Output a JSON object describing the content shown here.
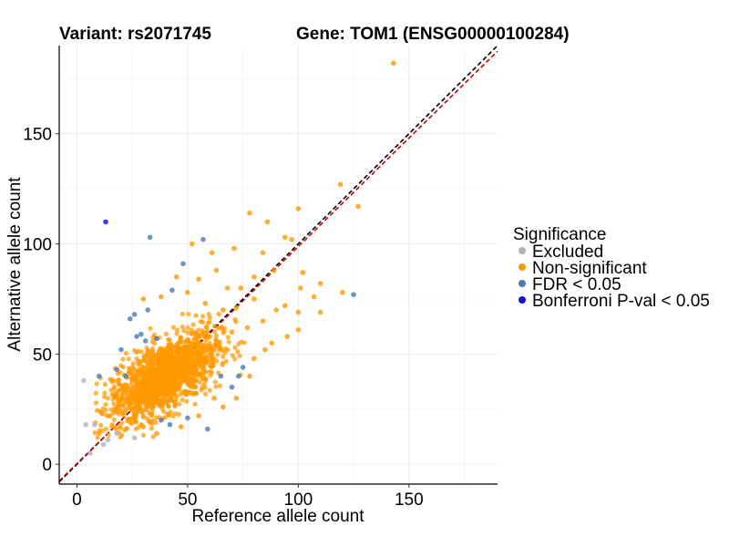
{
  "chart_data": {
    "type": "scatter",
    "title_left": "Variant: rs2071745",
    "title_right": "Gene: TOM1 (ENSG00000100284)",
    "xlabel": "Reference allele count",
    "ylabel": "Alternative allele count",
    "xlim": [
      -8,
      190
    ],
    "ylim": [
      -9,
      190
    ],
    "x_ticks": [
      0,
      50,
      100,
      150
    ],
    "y_ticks": [
      0,
      50,
      100,
      150
    ],
    "grid": true,
    "legend": {
      "title": "Significance",
      "placement": "right",
      "entries": [
        {
          "label": "Excluded",
          "color": "#b3b3b3"
        },
        {
          "label": "Non-significant",
          "color": "#ff9900"
        },
        {
          "label": "FDR < 0.05",
          "color": "#4a7bb7"
        },
        {
          "label": "Bonferroni P-val < 0.05",
          "color": "#1010e6"
        }
      ]
    },
    "reference_lines": [
      {
        "name": "identity",
        "slope": 1,
        "intercept": 0,
        "color": "#000000",
        "style": "dashed"
      },
      {
        "name": "fitted",
        "slope": 0.985,
        "intercept": 0.3,
        "color": "#cc0000",
        "style": "dashed"
      }
    ],
    "bulk_cloud": {
      "series": "Non-significant",
      "count": 1500,
      "center": [
        40,
        40
      ],
      "spread": [
        12,
        10
      ],
      "correlation": 0.62,
      "description_values_only": true
    },
    "series": [
      {
        "name": "Excluded",
        "color": "#b3b3b3",
        "points": [
          [
            3,
            38
          ],
          [
            4,
            18
          ],
          [
            8,
            18
          ],
          [
            12,
            9
          ],
          [
            14,
            11
          ],
          [
            6,
            5
          ],
          [
            18,
            14
          ],
          [
            26,
            12
          ]
        ]
      },
      {
        "name": "FDR < 0.05",
        "color": "#4a7bb7",
        "points": [
          [
            33,
            103
          ],
          [
            57,
            102
          ],
          [
            48,
            91
          ],
          [
            43,
            79
          ],
          [
            26,
            68
          ],
          [
            32,
            70
          ],
          [
            29,
            59
          ],
          [
            18,
            43
          ],
          [
            20,
            52
          ],
          [
            31,
            56
          ],
          [
            36,
            57
          ],
          [
            22,
            40
          ],
          [
            10,
            40
          ],
          [
            125,
            77
          ],
          [
            73,
            40
          ],
          [
            75,
            44
          ],
          [
            70,
            35
          ],
          [
            50,
            21
          ],
          [
            59,
            16
          ],
          [
            42,
            18
          ],
          [
            38,
            20
          ],
          [
            65,
            40
          ],
          [
            27,
            58
          ],
          [
            24,
            66
          ]
        ]
      },
      {
        "name": "Bonferroni P-val < 0.05",
        "color": "#1010e6",
        "points": [
          [
            13,
            110
          ]
        ]
      },
      {
        "name": "Non-significant (outlying points)",
        "color": "#ff9900",
        "points": [
          [
            143,
            182
          ],
          [
            119,
            127
          ],
          [
            127,
            117
          ],
          [
            100,
            116
          ],
          [
            78,
            114
          ],
          [
            86,
            110
          ],
          [
            94,
            103
          ],
          [
            97,
            102
          ],
          [
            71,
            98
          ],
          [
            84,
            96
          ],
          [
            89,
            88
          ],
          [
            102,
            87
          ],
          [
            110,
            82
          ],
          [
            101,
            80
          ],
          [
            107,
            76
          ],
          [
            120,
            78
          ],
          [
            110,
            69
          ],
          [
            100,
            69
          ],
          [
            94,
            72
          ],
          [
            52,
            100
          ],
          [
            61,
            96
          ],
          [
            63,
            88
          ],
          [
            68,
            80
          ],
          [
            80,
            75
          ],
          [
            90,
            70
          ],
          [
            84,
            65
          ],
          [
            77,
            62
          ],
          [
            95,
            58
          ],
          [
            88,
            55
          ],
          [
            100,
            61
          ],
          [
            45,
            85
          ],
          [
            55,
            84
          ],
          [
            38,
            76
          ],
          [
            50,
            78
          ],
          [
            66,
            70
          ],
          [
            72,
            71
          ],
          [
            74,
            80
          ],
          [
            80,
            85
          ],
          [
            58,
            73
          ],
          [
            30,
            75
          ],
          [
            70,
            60
          ],
          [
            85,
            52
          ],
          [
            80,
            48
          ],
          [
            78,
            40
          ],
          [
            62,
            30
          ],
          [
            66,
            26
          ],
          [
            72,
            30
          ],
          [
            55,
            22
          ],
          [
            47,
            17
          ],
          [
            36,
            14
          ],
          [
            30,
            17
          ],
          [
            20,
            24
          ],
          [
            15,
            22
          ],
          [
            10,
            14
          ],
          [
            18,
            30
          ],
          [
            22,
            36
          ]
        ]
      }
    ]
  }
}
